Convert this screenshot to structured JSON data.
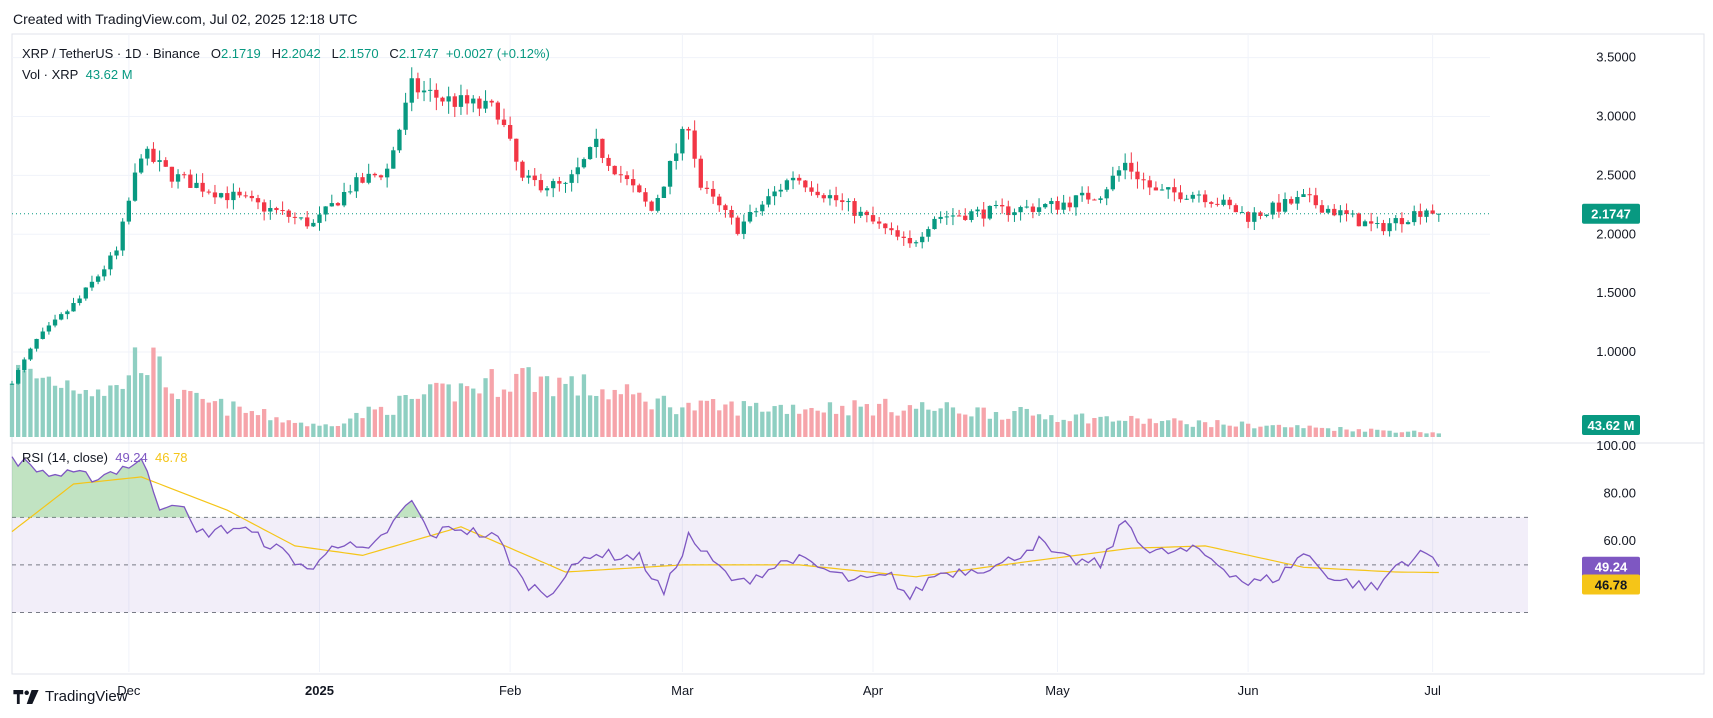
{
  "caption": "Created with TradingView.com, Jul 02, 2025 12:18 UTC",
  "brand": "TradingView",
  "legend": {
    "symbol": "XRP / TetherUS · 1D · Binance",
    "o_label": "O",
    "o": "2.1719",
    "h_label": "H",
    "h": "2.2042",
    "l_label": "L",
    "l": "2.1570",
    "c_label": "C",
    "c": "2.1747",
    "change": "+0.0027 (+0.12%)",
    "vol_label": "Vol · XRP",
    "vol": "43.62 M",
    "rsi_label": "RSI (14, close)",
    "rsi": "49.24",
    "rsi_ma": "46.78"
  },
  "colors": {
    "up": "#089981",
    "down": "#f23645",
    "up_vol": "#8fcfc2",
    "down_vol": "#f6a4aa",
    "rsi": "#7e57c2",
    "rsi_ma": "#f5c518",
    "grid": "#f0f3fa"
  },
  "chart_data": [
    {
      "type": "candlestick",
      "price_axis": {
        "ticks": [
          "3.5000",
          "3.0000",
          "2.5000",
          "2.0000",
          "1.5000",
          "1.0000"
        ],
        "range": [
          0.55,
          3.65
        ]
      },
      "time_axis": {
        "labels": [
          "Dec",
          "2025",
          "Feb",
          "Mar",
          "Apr",
          "May",
          "Jun",
          "Jul"
        ],
        "dates": [
          "2024-12-01",
          "2025-01-01",
          "2025-02-01",
          "2025-03-01",
          "2025-04-01",
          "2025-05-01",
          "2025-06-01",
          "2025-07-01"
        ],
        "range": [
          "2024-11-12",
          "2025-07-10"
        ]
      },
      "last_price": "2.1747",
      "key_closes": [
        {
          "date": "2024-11-12",
          "close": 0.75
        },
        {
          "date": "2024-11-16",
          "close": 1.1
        },
        {
          "date": "2024-11-23",
          "close": 1.45
        },
        {
          "date": "2024-11-29",
          "close": 1.85
        },
        {
          "date": "2024-12-03",
          "close": 2.7
        },
        {
          "date": "2024-12-08",
          "close": 2.5
        },
        {
          "date": "2024-12-13",
          "close": 2.4
        },
        {
          "date": "2024-12-19",
          "close": 2.3
        },
        {
          "date": "2024-12-31",
          "close": 2.08
        },
        {
          "date": "2025-01-06",
          "close": 2.4
        },
        {
          "date": "2025-01-12",
          "close": 2.55
        },
        {
          "date": "2025-01-16",
          "close": 3.25
        },
        {
          "date": "2025-01-21",
          "close": 3.15
        },
        {
          "date": "2025-01-30",
          "close": 3.05
        },
        {
          "date": "2025-02-03",
          "close": 2.45
        },
        {
          "date": "2025-02-10",
          "close": 2.4
        },
        {
          "date": "2025-02-15",
          "close": 2.75
        },
        {
          "date": "2025-02-24",
          "close": 2.2
        },
        {
          "date": "2025-03-02",
          "close": 2.95
        },
        {
          "date": "2025-03-04",
          "close": 2.4
        },
        {
          "date": "2025-03-10",
          "close": 2.05
        },
        {
          "date": "2025-03-19",
          "close": 2.5
        },
        {
          "date": "2025-03-29",
          "close": 2.2
        },
        {
          "date": "2025-04-07",
          "close": 1.9
        },
        {
          "date": "2025-04-11",
          "close": 2.15
        },
        {
          "date": "2025-04-22",
          "close": 2.2
        },
        {
          "date": "2025-05-01",
          "close": 2.25
        },
        {
          "date": "2025-05-08",
          "close": 2.35
        },
        {
          "date": "2025-05-12",
          "close": 2.6
        },
        {
          "date": "2025-05-17",
          "close": 2.35
        },
        {
          "date": "2025-05-24",
          "close": 2.35
        },
        {
          "date": "2025-06-01",
          "close": 2.15
        },
        {
          "date": "2025-06-10",
          "close": 2.3
        },
        {
          "date": "2025-06-22",
          "close": 2.05
        },
        {
          "date": "2025-06-30",
          "close": 2.22
        },
        {
          "date": "2025-07-02",
          "close": 2.1747
        }
      ]
    },
    {
      "type": "bar",
      "series": "Vol · XRP",
      "last_value": "43.62 M",
      "relative_volume_profile": [
        {
          "date": "2024-11-12",
          "rel": 0.75
        },
        {
          "date": "2024-11-29",
          "rel": 0.55
        },
        {
          "date": "2024-12-03",
          "rel": 1.0
        },
        {
          "date": "2024-12-10",
          "rel": 0.45
        },
        {
          "date": "2025-01-01",
          "rel": 0.12
        },
        {
          "date": "2025-01-17",
          "rel": 0.45
        },
        {
          "date": "2025-02-03",
          "rel": 0.72
        },
        {
          "date": "2025-03-02",
          "rel": 0.35
        },
        {
          "date": "2025-04-07",
          "rel": 0.35
        },
        {
          "date": "2025-05-12",
          "rel": 0.2
        },
        {
          "date": "2025-07-02",
          "rel": 0.05
        }
      ]
    },
    {
      "type": "line",
      "title": "RSI (14, close)",
      "axis": {
        "ticks": [
          "100.00",
          "80.00",
          "60.00"
        ],
        "range": [
          10,
          100
        ]
      },
      "bands": [
        30,
        50,
        70
      ],
      "last_rsi": "49.24",
      "last_ma": "46.78",
      "rsi_points": [
        {
          "date": "2024-11-12",
          "v": 95
        },
        {
          "date": "2024-11-18",
          "v": 88
        },
        {
          "date": "2024-11-26",
          "v": 87
        },
        {
          "date": "2024-12-03",
          "v": 94
        },
        {
          "date": "2024-12-06",
          "v": 75
        },
        {
          "date": "2024-12-09",
          "v": 77
        },
        {
          "date": "2024-12-12",
          "v": 63
        },
        {
          "date": "2024-12-19",
          "v": 66
        },
        {
          "date": "2024-12-25",
          "v": 57
        },
        {
          "date": "2024-12-31",
          "v": 47
        },
        {
          "date": "2025-01-03",
          "v": 60
        },
        {
          "date": "2025-01-09",
          "v": 55
        },
        {
          "date": "2025-01-16",
          "v": 77
        },
        {
          "date": "2025-01-19",
          "v": 62
        },
        {
          "date": "2025-01-23",
          "v": 66
        },
        {
          "date": "2025-01-30",
          "v": 61
        },
        {
          "date": "2025-02-03",
          "v": 43
        },
        {
          "date": "2025-02-07",
          "v": 38
        },
        {
          "date": "2025-02-14",
          "v": 55
        },
        {
          "date": "2025-02-22",
          "v": 53
        },
        {
          "date": "2025-02-26",
          "v": 38
        },
        {
          "date": "2025-03-02",
          "v": 62
        },
        {
          "date": "2025-03-06",
          "v": 51
        },
        {
          "date": "2025-03-10",
          "v": 42
        },
        {
          "date": "2025-03-19",
          "v": 53
        },
        {
          "date": "2025-03-29",
          "v": 43
        },
        {
          "date": "2025-04-04",
          "v": 45
        },
        {
          "date": "2025-04-07",
          "v": 36
        },
        {
          "date": "2025-04-11",
          "v": 46
        },
        {
          "date": "2025-04-22",
          "v": 50
        },
        {
          "date": "2025-04-28",
          "v": 60
        },
        {
          "date": "2025-05-01",
          "v": 53
        },
        {
          "date": "2025-05-08",
          "v": 50
        },
        {
          "date": "2025-05-12",
          "v": 69
        },
        {
          "date": "2025-05-16",
          "v": 55
        },
        {
          "date": "2025-05-24",
          "v": 56
        },
        {
          "date": "2025-06-01",
          "v": 42
        },
        {
          "date": "2025-06-06",
          "v": 45
        },
        {
          "date": "2025-06-10",
          "v": 55
        },
        {
          "date": "2025-06-15",
          "v": 44
        },
        {
          "date": "2025-06-22",
          "v": 40
        },
        {
          "date": "2025-06-25",
          "v": 50
        },
        {
          "date": "2025-06-30",
          "v": 55
        },
        {
          "date": "2025-07-02",
          "v": 49.24
        }
      ],
      "ma_points": [
        {
          "date": "2024-11-12",
          "v": 64
        },
        {
          "date": "2024-11-22",
          "v": 84
        },
        {
          "date": "2024-12-03",
          "v": 87
        },
        {
          "date": "2024-12-17",
          "v": 73
        },
        {
          "date": "2024-12-28",
          "v": 58
        },
        {
          "date": "2025-01-08",
          "v": 54
        },
        {
          "date": "2025-01-24",
          "v": 66
        },
        {
          "date": "2025-02-10",
          "v": 47
        },
        {
          "date": "2025-03-01",
          "v": 50
        },
        {
          "date": "2025-03-20",
          "v": 50
        },
        {
          "date": "2025-04-08",
          "v": 45
        },
        {
          "date": "2025-04-25",
          "v": 51
        },
        {
          "date": "2025-05-13",
          "v": 57
        },
        {
          "date": "2025-05-25",
          "v": 58
        },
        {
          "date": "2025-06-10",
          "v": 49
        },
        {
          "date": "2025-06-25",
          "v": 47
        },
        {
          "date": "2025-07-02",
          "v": 46.78
        }
      ]
    }
  ]
}
